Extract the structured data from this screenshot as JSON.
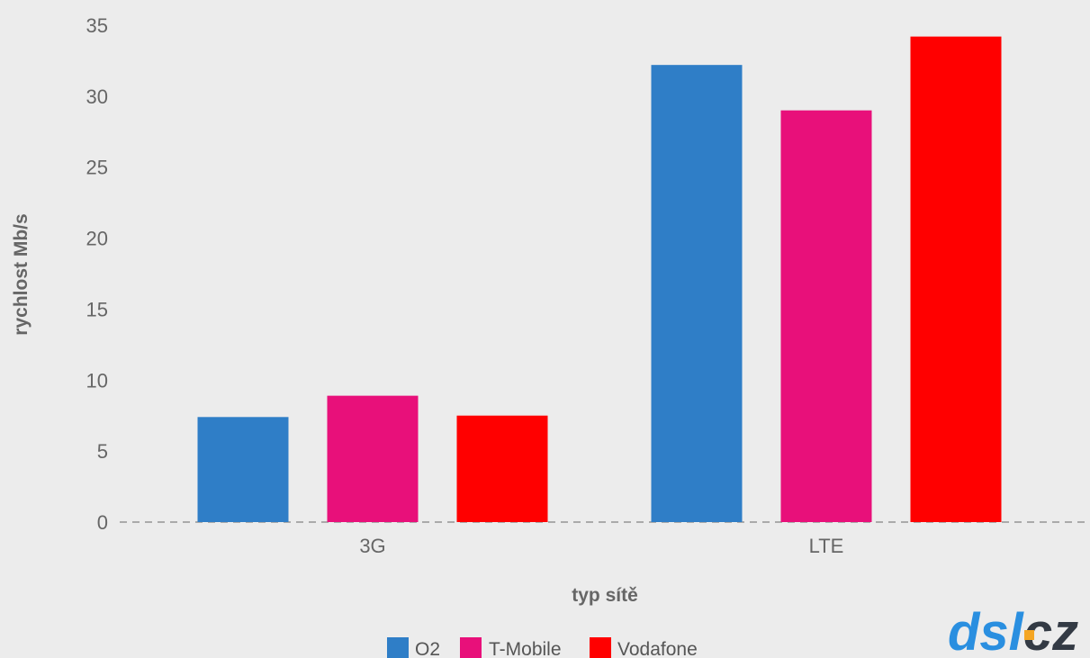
{
  "chart_data": {
    "type": "bar",
    "categories": [
      "3G",
      "LTE"
    ],
    "series": [
      {
        "name": "O2",
        "color": "#2f7ec7",
        "values": [
          7.4,
          32.2
        ]
      },
      {
        "name": "T-Mobile",
        "color": "#e8107a",
        "values": [
          8.9,
          29.0
        ]
      },
      {
        "name": "Vodafone",
        "color": "#ff0000",
        "values": [
          7.5,
          34.2
        ]
      }
    ],
    "title": "",
    "xlabel": "typ sítě",
    "ylabel": "rychlost Mb/s",
    "ylim": [
      0,
      35
    ],
    "yticks": [
      "0",
      "5",
      "10",
      "15",
      "20",
      "25",
      "30",
      "35"
    ],
    "grid": false,
    "legend_position": "bottom"
  },
  "logo": {
    "text_part1": "dsl",
    "text_part2": "cz",
    "color_main": "#2a8fe0",
    "color_accent": "#333a44",
    "color_dot": "#f5a623"
  }
}
